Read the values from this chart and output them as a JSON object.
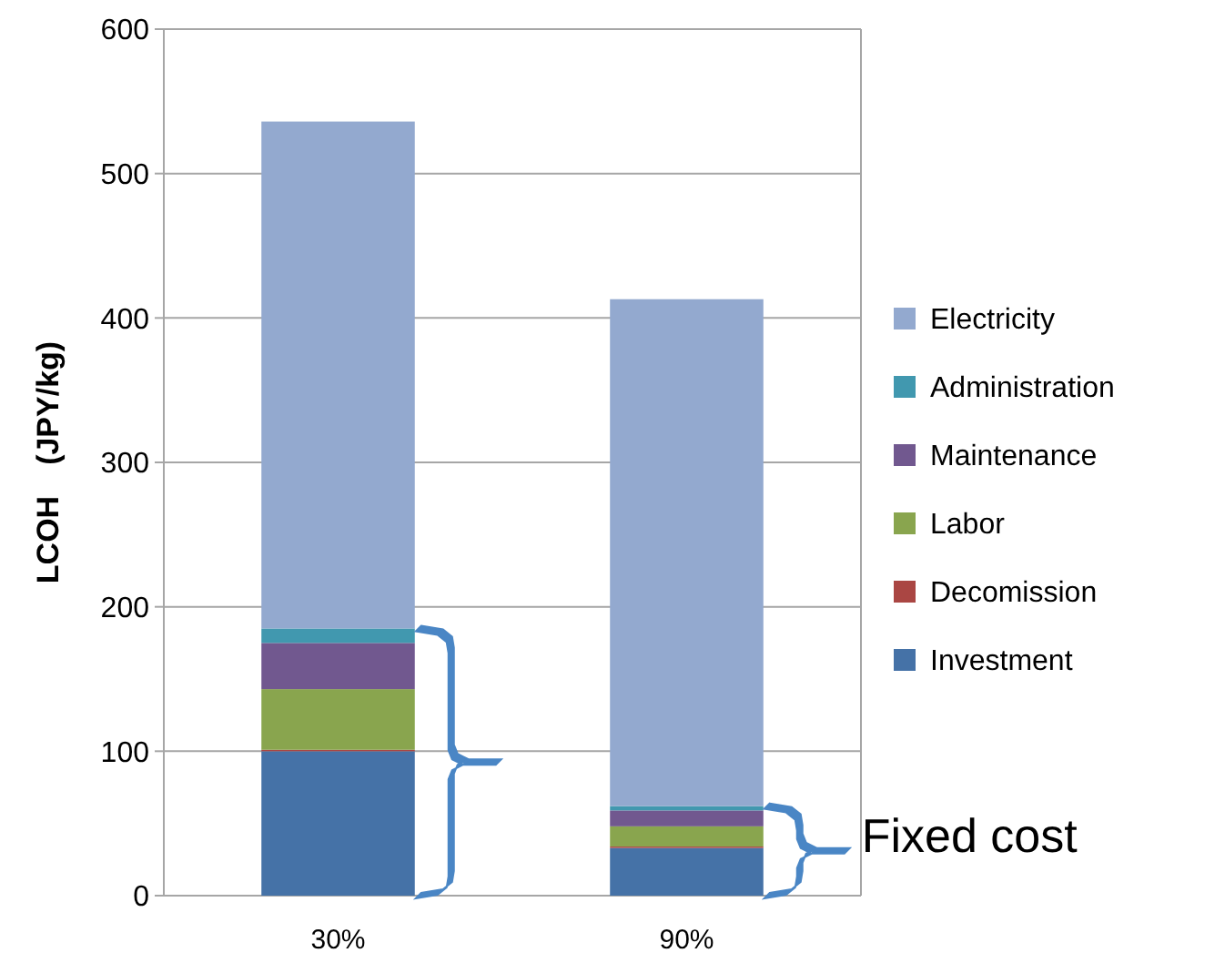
{
  "chart_data": {
    "type": "bar",
    "stacked": true,
    "ylabel": "LCOH　(JPY/kg)",
    "categories": [
      "30%",
      "90%"
    ],
    "series": [
      {
        "name": "Investment",
        "color": "#4572a7",
        "values": [
          100,
          33
        ]
      },
      {
        "name": "Decomission",
        "color": "#aa4643",
        "values": [
          1,
          1
        ]
      },
      {
        "name": "Labor",
        "color": "#89a54e",
        "values": [
          42,
          14
        ]
      },
      {
        "name": "Maintenance",
        "color": "#71588f",
        "values": [
          32,
          11
        ]
      },
      {
        "name": "Administration",
        "color": "#4198af",
        "values": [
          10,
          3
        ]
      },
      {
        "name": "Electricity",
        "color": "#93a9cf",
        "values": [
          351,
          351
        ]
      }
    ],
    "ylim": [
      0,
      600
    ],
    "yticks": [
      0,
      100,
      200,
      300,
      400,
      500,
      600
    ],
    "grid": "y",
    "legend": "right",
    "annotations": [
      "Fixed cost"
    ]
  }
}
